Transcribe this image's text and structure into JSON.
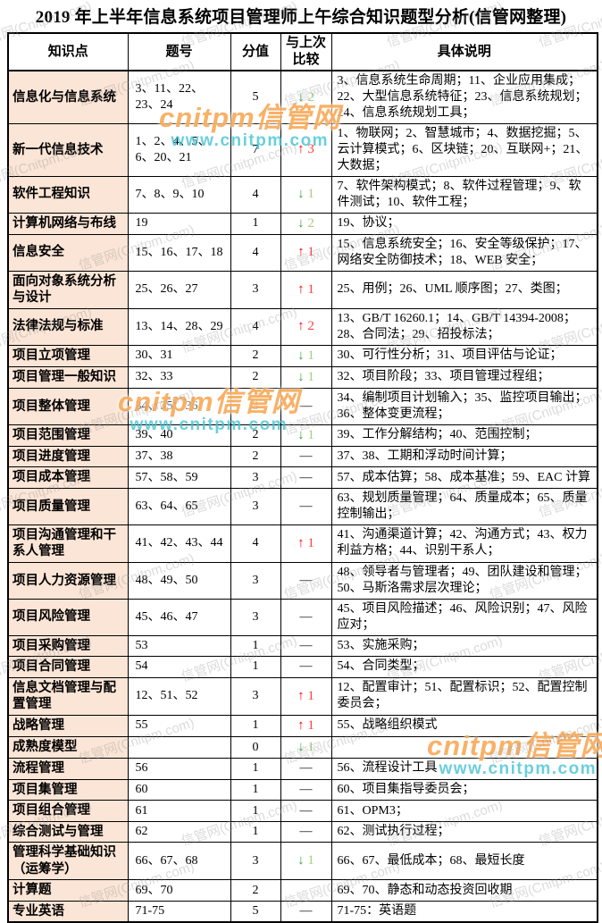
{
  "title": "2019 年上半年信息系统项目管理师上午综合知识题型分析(信管网整理)",
  "table": {
    "headers": [
      "知识点",
      "题号",
      "分值",
      "与上次比较",
      "具体说明"
    ],
    "rows": [
      {
        "topic": "信息化与信息系统",
        "questions": "3、11、22、23、24",
        "score": "5",
        "trend": {
          "dir": "down",
          "value": "2"
        },
        "detail": "3、信息系统生命周期；11、企业应用集成； 22、大型信息系统特征；23、信息系统规划；24、信息系统规划工具；"
      },
      {
        "topic": "新一代信息技术",
        "questions": "1、2、4、5、6、20、21",
        "score": "7",
        "trend": {
          "dir": "up",
          "value": "3"
        },
        "detail": "1、物联网；2、智慧城市；4、数据挖掘；5、云计算模式；6、区块链；20、互联网+；21、大数据；"
      },
      {
        "topic": "软件工程知识",
        "questions": "7、8、9、10",
        "score": "4",
        "trend": {
          "dir": "down",
          "value": "1"
        },
        "detail": "7、软件架构模式；8、软件过程管理；9、软件测试；10、软件工程；"
      },
      {
        "topic": "计算机网络与布线",
        "questions": "19",
        "score": "1",
        "trend": {
          "dir": "down",
          "value": "2"
        },
        "detail": "19、协议；"
      },
      {
        "topic": "信息安全",
        "questions": "15、16、17、18",
        "score": "4",
        "trend": {
          "dir": "up",
          "value": "1"
        },
        "detail": "15、信息系统安全；16、安全等级保护；17、网络安全防御技术；18、WEB 安全；"
      },
      {
        "topic": "面向对象系统分析与设计",
        "questions": "25、26、27",
        "score": "3",
        "trend": {
          "dir": "up",
          "value": "1"
        },
        "detail": "25、用例；26、UML 顺序图；27、类图；"
      },
      {
        "topic": "法律法规与标准",
        "questions": "13、14、28、29",
        "score": "4",
        "trend": {
          "dir": "up",
          "value": "2"
        },
        "detail": "13、GB/T 16260.1；14、GB/T 14394-2008；28、合同法；29、招投标法；"
      },
      {
        "topic": "项目立项管理",
        "questions": "30、31",
        "score": "2",
        "trend": {
          "dir": "down",
          "value": "1"
        },
        "detail": "30、可行性分析；31、项目评估与论证；"
      },
      {
        "topic": "项目管理一般知识",
        "questions": "32、33",
        "score": "2",
        "trend": {
          "dir": "down",
          "value": "1"
        },
        "detail": "32、项目阶段；33、项目管理过程组；"
      },
      {
        "topic": "项目整体管理",
        "questions": "34、35、36",
        "score": "3",
        "trend": {
          "dir": "dash",
          "value": ""
        },
        "detail": "34、编制项目计划输入；35、监控项目输出；36、整体变更流程；"
      },
      {
        "topic": "项目范围管理",
        "questions": "39、40",
        "score": "2",
        "trend": {
          "dir": "down",
          "value": "1"
        },
        "detail": "39、工作分解结构；40、范围控制；"
      },
      {
        "topic": "项目进度管理",
        "questions": "37、38",
        "score": "2",
        "trend": {
          "dir": "dash",
          "value": ""
        },
        "detail": "37、38、工期和浮动时间计算；"
      },
      {
        "topic": "项目成本管理",
        "questions": "57、58、59",
        "score": "3",
        "trend": {
          "dir": "dash",
          "value": ""
        },
        "detail": "57、成本估算；58、成本基准；59、EAC 计算"
      },
      {
        "topic": "项目质量管理",
        "questions": "63、64、65",
        "score": "3",
        "trend": {
          "dir": "dash",
          "value": ""
        },
        "detail": "63、规划质量管理；64、质量成本；65、质量控制输出；"
      },
      {
        "topic": "项目沟通管理和干系人管理",
        "questions": "41、42、43、44",
        "score": "4",
        "trend": {
          "dir": "up",
          "value": "1"
        },
        "detail": "41、沟通渠道计算；42、沟通方式；43、权力利益方格；44、识别干系人；"
      },
      {
        "topic": "项目人力资源管理",
        "questions": "48、49、50",
        "score": "3",
        "trend": {
          "dir": "dash",
          "value": ""
        },
        "detail": "48、领导者与管理者；49、团队建设和管理；50、马斯洛需求层次理论；"
      },
      {
        "topic": "项目风险管理",
        "questions": "45、46、47",
        "score": "3",
        "trend": {
          "dir": "dash",
          "value": ""
        },
        "detail": "45、项目风险描述；46、风险识别；47、风险应对；"
      },
      {
        "topic": "项目采购管理",
        "questions": "53",
        "score": "1",
        "trend": {
          "dir": "dash",
          "value": ""
        },
        "detail": "53、实施采购；"
      },
      {
        "topic": "项目合同管理",
        "questions": "54",
        "score": "1",
        "trend": {
          "dir": "dash",
          "value": ""
        },
        "detail": "54、合同类型；"
      },
      {
        "topic": "信息文档管理与配置管理",
        "questions": "12、51、52",
        "score": "3",
        "trend": {
          "dir": "up",
          "value": "1"
        },
        "detail": "12、配置审计；51、配置标识；52、配置控制委员会；"
      },
      {
        "topic": "战略管理",
        "questions": "55",
        "score": "1",
        "trend": {
          "dir": "up",
          "value": "1"
        },
        "detail": "55、战略组织模式"
      },
      {
        "topic": "成熟度模型",
        "questions": "",
        "score": "0",
        "trend": {
          "dir": "down",
          "value": "1"
        },
        "detail": ""
      },
      {
        "topic": "流程管理",
        "questions": "56",
        "score": "1",
        "trend": {
          "dir": "dash",
          "value": ""
        },
        "detail": "56、流程设计工具"
      },
      {
        "topic": "项目集管理",
        "questions": "60",
        "score": "1",
        "trend": {
          "dir": "dash",
          "value": ""
        },
        "detail": "60、项目集指导委员会；"
      },
      {
        "topic": "项目组合管理",
        "questions": "61",
        "score": "1",
        "trend": {
          "dir": "dash",
          "value": ""
        },
        "detail": "61、OPM3；"
      },
      {
        "topic": "综合测试与管理",
        "questions": "62",
        "score": "1",
        "trend": {
          "dir": "dash",
          "value": ""
        },
        "detail": "62、测试执行过程；"
      },
      {
        "topic": "管理科学基础知识（运筹学）",
        "questions": "66、67、68",
        "score": "3",
        "trend": {
          "dir": "down",
          "value": "1"
        },
        "detail": "66、67、最低成本；68、最短长度"
      },
      {
        "topic": "计算题",
        "questions": "69、70",
        "score": "2",
        "trend": {
          "dir": "none",
          "value": ""
        },
        "detail": "69、70、静态和动态投资回收期"
      },
      {
        "topic": "专业英语",
        "questions": "71-75",
        "score": "5",
        "trend": {
          "dir": "dash",
          "value": ""
        },
        "detail": "71-75：英语题"
      }
    ]
  },
  "watermarks": {
    "brand": "cnitpm信管网",
    "url": "www.cnitpm.com",
    "diagonal": "信管网(Cnitpm.com)"
  },
  "colors": {
    "topic_cell_bg": "#fbe5d6",
    "trend_up": "#ff0000",
    "trend_down": "#3aa33a",
    "brand_watermark": "#f7a046",
    "url_watermark": "#40c2d2",
    "diagonal_watermark": "#919191"
  }
}
